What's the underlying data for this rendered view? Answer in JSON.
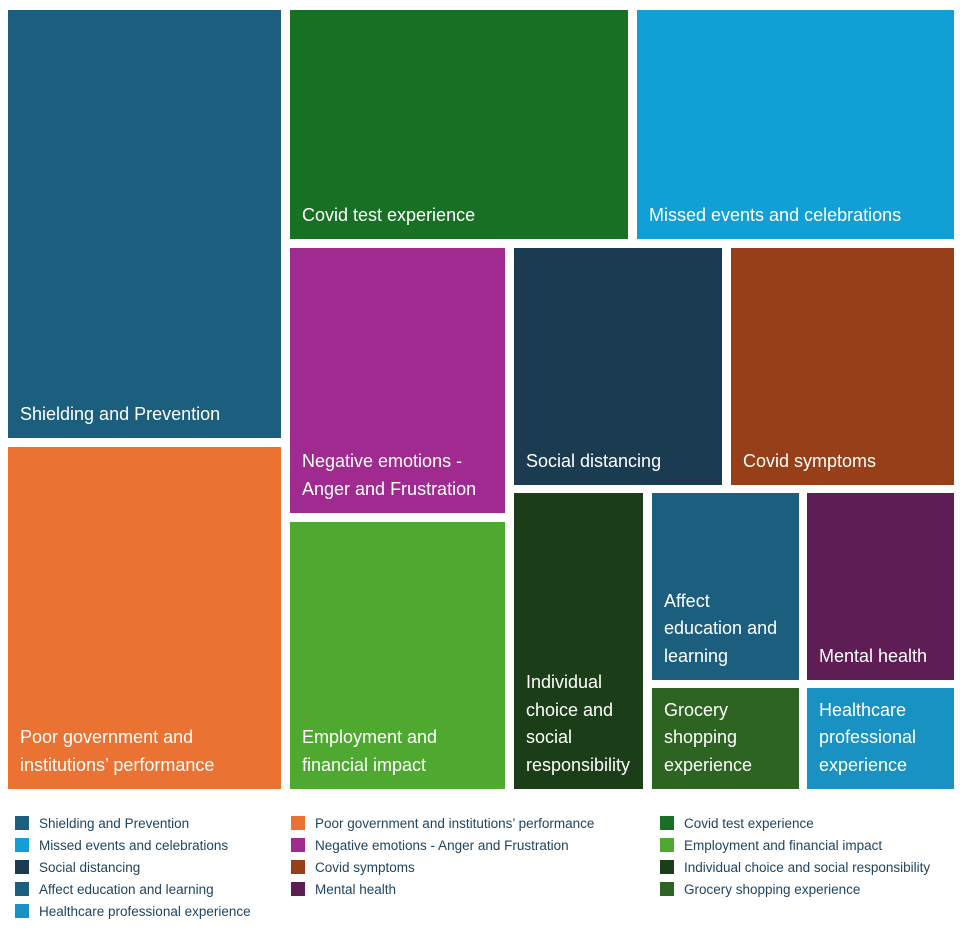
{
  "chart_data": {
    "type": "treemap",
    "title": "",
    "items": [
      {
        "name": "Shielding and Prevention",
        "label": "Shielding and Prevention",
        "color": "#1b5e7e",
        "legend_label": "Shielding and Prevention"
      },
      {
        "name": "Poor government and institutions’ performance",
        "label": "Poor government and institutions’ performance",
        "color": "#ea7333",
        "legend_label": "Poor government and institutions’ performance"
      },
      {
        "name": "Covid test experience",
        "label": "Covid test experience",
        "color": "#187025",
        "legend_label": "Covid test experience"
      },
      {
        "name": "Missed events and celebrations",
        "label": "Missed events and celebrations",
        "color": "#129fd6",
        "legend_label": "Missed events and celebrations"
      },
      {
        "name": "Negative emotions - Anger and Frustration",
        "label": "Negative emotions - Anger and Frustration",
        "color": "#a02a90",
        "legend_label": "Negative emotions - Anger and Frustration"
      },
      {
        "name": "Social distancing",
        "label": "Social distancing",
        "color": "#1a3b50",
        "legend_label": "Social distancing"
      },
      {
        "name": "Covid symptoms",
        "label": "Covid symptoms",
        "color": "#963f19",
        "legend_label": "Covid symptoms"
      },
      {
        "name": "Employment and financial impact",
        "label": "Employment and financial impact",
        "color": "#4fa830",
        "legend_label": "Employment and financial impact"
      },
      {
        "name": "Individual choice and social responsibility",
        "label": "Individual choice and social responsibility",
        "color": "#1b3d18",
        "legend_label": "Individual choice and social responsibility"
      },
      {
        "name": "Affect education and learning",
        "label": "Affect education and learning",
        "color": "#1b5e7e",
        "legend_label": "Affect education and learning"
      },
      {
        "name": "Mental health",
        "label": "Mental health",
        "color": "#5e1d55",
        "legend_label": "Mental health"
      },
      {
        "name": "Grocery shopping experience",
        "label": "Grocery shopping experience",
        "color": "#2e6421",
        "legend_label": "Grocery shopping experience"
      },
      {
        "name": "Healthcare professional experience",
        "label": "Healthcare professional experience",
        "color": "#1a91c3",
        "legend_label": "Healthcare professional experience"
      }
    ],
    "legend": {
      "placement": "bottom",
      "columns": [
        [
          "Shielding and Prevention",
          "Missed events and celebrations",
          "Social distancing",
          "Affect education and learning",
          "Healthcare professional experience"
        ],
        [
          "Poor government and institutions’ performance",
          "Negative emotions - Anger and Frustration",
          "Covid symptoms",
          "Mental health"
        ],
        [
          "Covid test experience",
          "Employment and financial impact",
          "Individual choice and social responsibility",
          "Grocery shopping experience"
        ]
      ]
    }
  }
}
